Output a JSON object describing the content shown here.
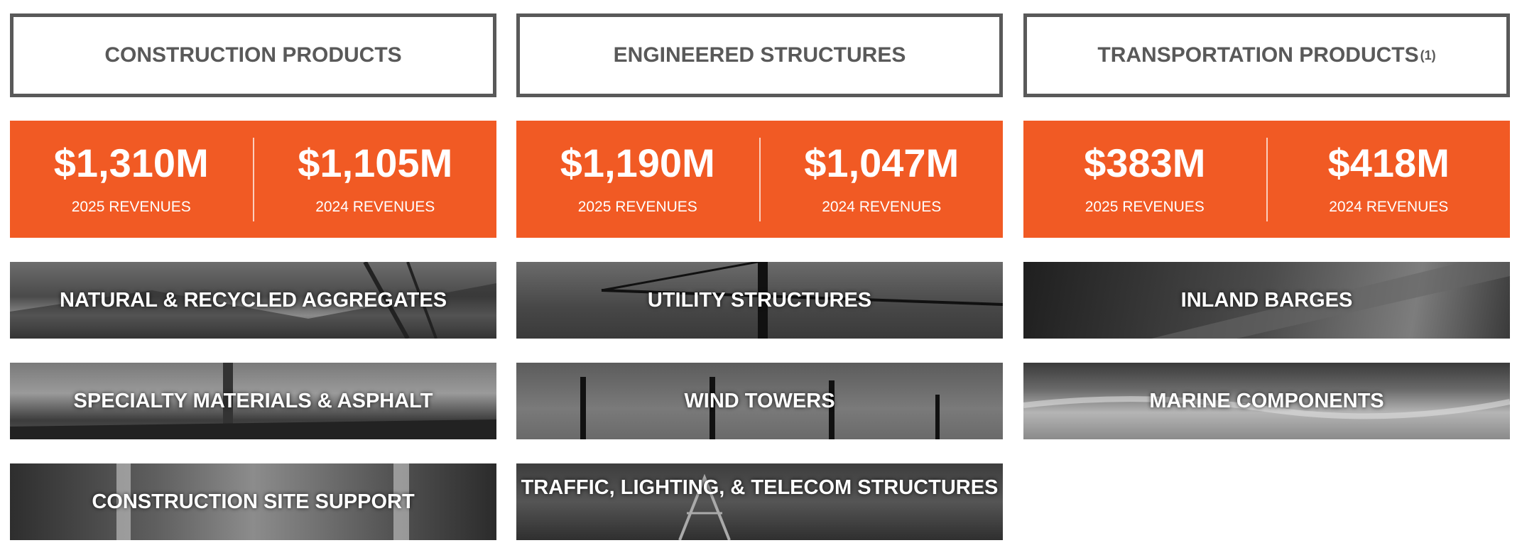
{
  "columns": [
    {
      "title": "CONSTRUCTION PRODUCTS",
      "revenues": [
        {
          "value": "$1,310M",
          "label": "2025 REVENUES"
        },
        {
          "value": "$1,105M",
          "label": "2024 REVENUES"
        }
      ],
      "segments": [
        "NATURAL & RECYCLED AGGREGATES",
        "SPECIALTY MATERIALS & ASPHALT",
        "CONSTRUCTION SITE SUPPORT"
      ]
    },
    {
      "title": "ENGINEERED STRUCTURES",
      "revenues": [
        {
          "value": "$1,190M",
          "label": "2025 REVENUES"
        },
        {
          "value": "$1,047M",
          "label": "2024 REVENUES"
        }
      ],
      "segments": [
        "UTILITY STRUCTURES",
        "WIND TOWERS",
        "TRAFFIC, LIGHTING, & TELECOM STRUCTURES"
      ]
    },
    {
      "title": "TRANSPORTATION PRODUCTS",
      "title_note": "(1)",
      "revenues": [
        {
          "value": "$383M",
          "label": "2025 REVENUES"
        },
        {
          "value": "$418M",
          "label": "2024 REVENUES"
        }
      ],
      "segments": [
        "INLAND BARGES",
        "MARINE COMPONENTS"
      ]
    }
  ]
}
